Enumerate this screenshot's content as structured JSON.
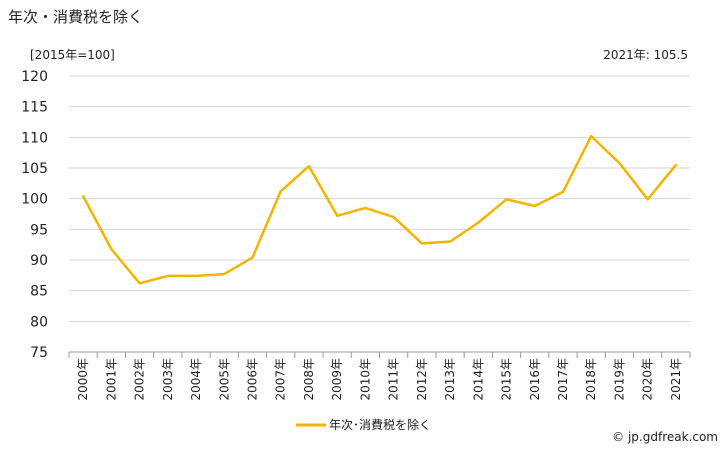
{
  "header": {
    "title": "年次・消費税を除く",
    "unit_label": "[2015年=100]",
    "latest_label": "2021年: 105.5"
  },
  "footer": {
    "credit": "© jp.gdfreak.com"
  },
  "chart_data": {
    "type": "line",
    "title": "年次・消費税を除く",
    "categories": [
      "2000年",
      "2001年",
      "2002年",
      "2003年",
      "2004年",
      "2005年",
      "2006年",
      "2007年",
      "2008年",
      "2009年",
      "2010年",
      "2011年",
      "2012年",
      "2013年",
      "2014年",
      "2015年",
      "2016年",
      "2017年",
      "2018年",
      "2019年",
      "2020年",
      "2021年"
    ],
    "series": [
      {
        "name": "年次･消費税を除く",
        "color": "#f5b400",
        "values": [
          100.4,
          91.8,
          86.2,
          87.4,
          87.4,
          87.7,
          90.4,
          101.2,
          105.3,
          97.2,
          98.5,
          97.0,
          92.7,
          93.0,
          96.1,
          99.9,
          98.8,
          101.1,
          110.2,
          105.8,
          99.9,
          105.5
        ]
      }
    ],
    "ylim": [
      75,
      120
    ],
    "yticks": [
      75,
      80,
      85,
      90,
      95,
      100,
      105,
      110,
      115,
      120
    ],
    "grid": true,
    "legend": "bottom"
  }
}
